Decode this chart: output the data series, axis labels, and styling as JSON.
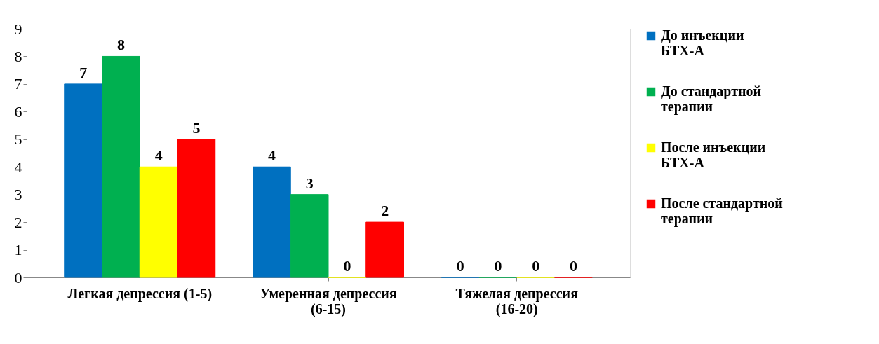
{
  "chart_data": {
    "type": "bar",
    "categories": [
      "Легкая депрессия (1-5)",
      "Умеренная депрессия (6-15)",
      "Тяжелая депрессия (16-20)"
    ],
    "series": [
      {
        "name": "До инъекции БТХ-А",
        "color": "#0070c0",
        "values": [
          7,
          4,
          0
        ]
      },
      {
        "name": "До стандартной терапии",
        "color": "#00b050",
        "values": [
          8,
          3,
          0
        ]
      },
      {
        "name": "После инъекции БТХ-А",
        "color": "#ffff00",
        "values": [
          4,
          0,
          0
        ]
      },
      {
        "name": "После стандартной терапии",
        "color": "#ff0000",
        "values": [
          5,
          2,
          0
        ]
      }
    ],
    "ylim": [
      0,
      9
    ],
    "yticks": [
      0,
      1,
      2,
      3,
      4,
      5,
      6,
      7,
      8,
      9
    ],
    "grid": false,
    "legend": "right",
    "data_labels": true
  }
}
